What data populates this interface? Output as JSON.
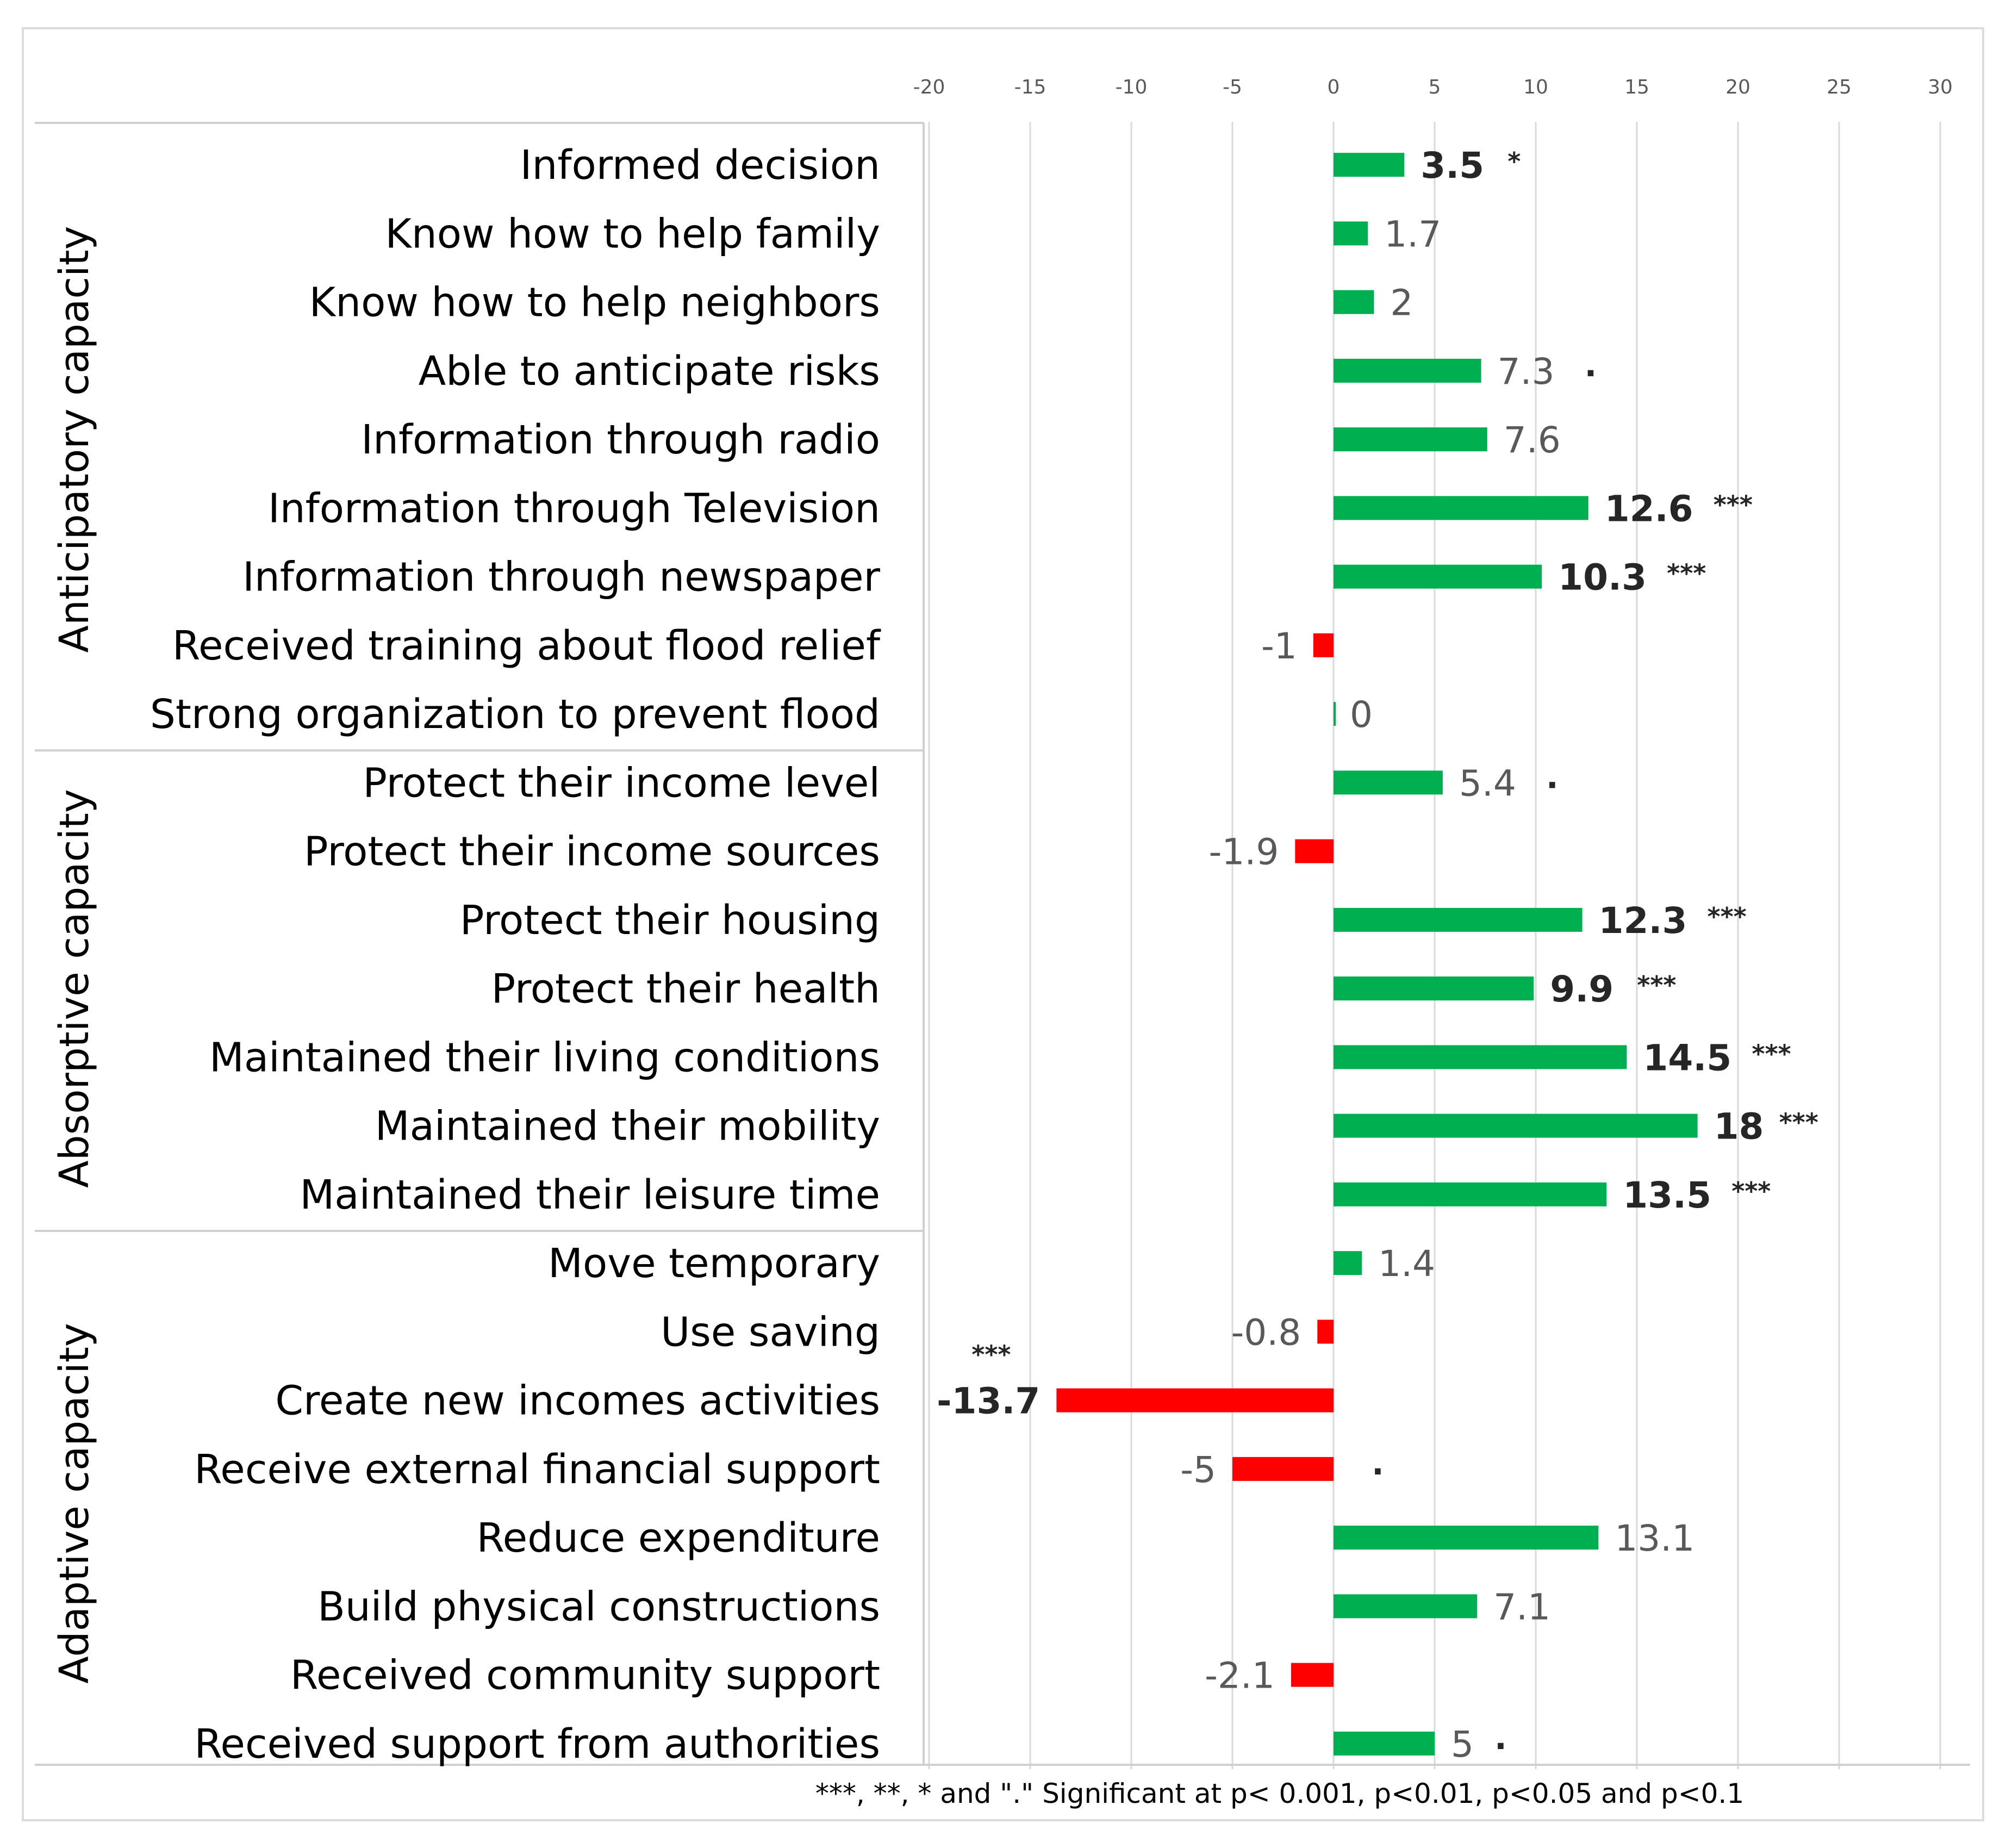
{
  "chart_data": {
    "type": "bar",
    "orientation": "horizontal",
    "xlim": [
      -20,
      30
    ],
    "xticks": [
      -20,
      -15,
      -10,
      -5,
      0,
      5,
      10,
      15,
      20,
      25,
      30
    ],
    "grid": true,
    "positive_color": "#00b050",
    "negative_color": "#ff0000",
    "groups": [
      {
        "name": "Anticipatory capacity",
        "items": [
          {
            "label": "Informed decision",
            "value": 3.5,
            "display": "3.5",
            "sig": "*",
            "bold": true
          },
          {
            "label": "Know how to help family",
            "value": 1.7,
            "display": "1.7",
            "sig": "",
            "bold": false
          },
          {
            "label": "Know how to help neighbors",
            "value": 2,
            "display": "2",
            "sig": "",
            "bold": false
          },
          {
            "label": "Able to anticipate risks",
            "value": 7.3,
            "display": "7.3",
            "sig": ".",
            "bold": false
          },
          {
            "label": "Information through radio",
            "value": 7.6,
            "display": "7.6",
            "sig": "",
            "bold": false
          },
          {
            "label": "Information through Television",
            "value": 12.6,
            "display": "12.6",
            "sig": "***",
            "bold": true
          },
          {
            "label": "Information through newspaper",
            "value": 10.3,
            "display": "10.3",
            "sig": "***",
            "bold": true
          },
          {
            "label": "Received training about flood relief",
            "value": -1,
            "display": "-1",
            "sig": "",
            "bold": false
          },
          {
            "label": "Strong organization to prevent flood",
            "value": 0,
            "display": "0",
            "sig": "",
            "bold": false
          }
        ]
      },
      {
        "name": "Absorptive capacity",
        "items": [
          {
            "label": "Protect their income level",
            "value": 5.4,
            "display": "5.4",
            "sig": ".",
            "bold": false
          },
          {
            "label": "Protect their income sources",
            "value": -1.9,
            "display": "-1.9",
            "sig": "",
            "bold": false
          },
          {
            "label": "Protect their housing",
            "value": 12.3,
            "display": "12.3",
            "sig": "***",
            "bold": true
          },
          {
            "label": "Protect their health",
            "value": 9.9,
            "display": "9.9",
            "sig": "***",
            "bold": true
          },
          {
            "label": "Maintained their living conditions",
            "value": 14.5,
            "display": "14.5",
            "sig": "***",
            "bold": true
          },
          {
            "label": "Maintained their mobility",
            "value": 18,
            "display": "18",
            "sig": "***",
            "bold": true
          },
          {
            "label": "Maintained their leisure time",
            "value": 13.5,
            "display": "13.5",
            "sig": "***",
            "bold": true
          }
        ]
      },
      {
        "name": "Adaptive capacity",
        "items": [
          {
            "label": "Move temporary",
            "value": 1.4,
            "display": "1.4",
            "sig": "",
            "bold": false
          },
          {
            "label": "Use saving",
            "value": -0.8,
            "display": "-0.8",
            "sig": "",
            "bold": false
          },
          {
            "label": "Create new incomes activities",
            "value": -13.7,
            "display": "-13.7",
            "sig": "***",
            "bold": true
          },
          {
            "label": "Receive external financial support",
            "value": -5,
            "display": "-5",
            "sig": ".",
            "bold": false
          },
          {
            "label": "Reduce expenditure",
            "value": 13.1,
            "display": "13.1",
            "sig": "",
            "bold": false
          },
          {
            "label": "Build physical constructions",
            "value": 7.1,
            "display": "7.1",
            "sig": "",
            "bold": false
          },
          {
            "label": "Received community support",
            "value": -2.1,
            "display": "-2.1",
            "sig": "",
            "bold": false
          },
          {
            "label": "Received support from authorities",
            "value": 5,
            "display": "5",
            "sig": ".",
            "bold": false
          }
        ]
      }
    ],
    "footnote": "***, **, * and \".\"  Significant at p< 0.001, p<0.01, p<0.05 and  p<0.1"
  }
}
